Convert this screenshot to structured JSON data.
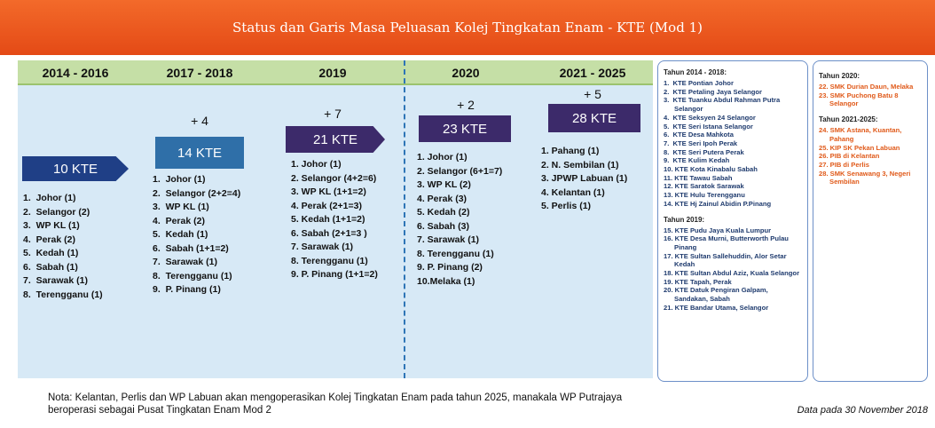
{
  "title": "Status dan Garis Masa Peluasan Kolej Tingkatan Enam - KTE (Mod 1)",
  "columns": [
    {
      "period": "2014 - 2016",
      "badge": "10 KTE",
      "items": [
        "1.  Johor (1)",
        "2.  Selangor (2)",
        "3.  WP KL (1)",
        "4.  Perak (2)",
        "5.  Kedah (1)",
        "6.  Sabah (1)",
        "7.  Sarawak (1)",
        "8.  Terengganu (1)"
      ]
    },
    {
      "period": "2017 - 2018",
      "increment": "+ 4",
      "badge": "14 KTE",
      "items": [
        "1.  Johor (1)",
        "2.  Selangor (2+2=4)",
        "3.  WP KL (1)",
        "4.  Perak (2)",
        "5.  Kedah (1)",
        "6.  Sabah (1+1=2)",
        "7.  Sarawak (1)",
        "8.  Terengganu (1)",
        "9.  P. Pinang (1)"
      ]
    },
    {
      "period": "2019",
      "increment": "+ 7",
      "badge": "21 KTE",
      "items": [
        "1. Johor (1)",
        "2. Selangor (4+2=6)",
        "3. WP KL (1+1=2)",
        "4. Perak (2+1=3)",
        "5. Kedah (1+1=2)",
        "6. Sabah (2+1=3 )",
        "7. Sarawak (1)",
        "8. Terengganu (1)",
        "9. P. Pinang (1+1=2)"
      ]
    },
    {
      "period": "2020",
      "increment": "+ 2",
      "badge": "23 KTE",
      "items": [
        "1. Johor (1)",
        "2. Selangor (6+1=7)",
        "3. WP KL (2)",
        "4. Perak (3)",
        "5. Kedah (2)",
        "6. Sabah (3)",
        "7. Sarawak (1)",
        "8. Terengganu (1)",
        "9. P. Pinang (2)",
        "10.Melaka (1)"
      ]
    },
    {
      "period": "2021 - 2025",
      "increment": "+ 5",
      "badge": "28 KTE",
      "items": [
        "1. Pahang (1)",
        "2. N. Sembilan (1)",
        "3. JPWP Labuan (1)",
        "4. Kelantan (1)",
        "5. Perlis (1)"
      ]
    }
  ],
  "panels": [
    {
      "sections": [
        {
          "heading": "Tahun 2014 - 2018:",
          "items": [
            "1.  KTE Pontian Johor",
            "2.  KTE Petaling Jaya Selangor",
            "3.  KTE Tuanku Abdul Rahman Putra Selangor",
            "4.  KTE Seksyen 24 Selangor",
            "5.  KTE Seri Istana Selangor",
            "6.  KTE Desa Mahkota",
            "7.  KTE Seri Ipoh Perak",
            "8.  KTE Seri Putera Perak",
            "9.  KTE Kulim Kedah",
            "10. KTE Kota Kinabalu Sabah",
            "11. KTE Tawau Sabah",
            "12. KTE Saratok Sarawak",
            "13. KTE Hulu Terengganu",
            "14. KTE Hj Zainul Abidin P.Pinang"
          ]
        },
        {
          "heading": "Tahun 2019:",
          "items": [
            "15. KTE Pudu Jaya Kuala Lumpur",
            "16. KTE Desa Murni, Butterworth Pulau Pinang",
            "17. KTE Sultan Sallehuddin, Alor Setar Kedah",
            "18. KTE Sultan Abdul Aziz, Kuala Selangor",
            "19. KTE Tapah, Perak",
            "20. KTE Datuk Pengiran Galpam, Sandakan, Sabah",
            "21. KTE Bandar Utama, Selangor"
          ]
        }
      ]
    },
    {
      "sections": [
        {
          "heading": "Tahun 2020:",
          "items": [
            "22. SMK Durian Daun, Melaka",
            "23. SMK Puchong Batu 8 Selangor"
          ]
        },
        {
          "heading": "Tahun 2021-2025:",
          "items": [
            "24. SMK Astana, Kuantan, Pahang",
            "25. KIP SK Pekan Labuan",
            "26. PIB di Kelantan",
            "27. PIB di Perlis",
            "28. SMK Senawang 3, Negeri Sembilan"
          ]
        }
      ]
    }
  ],
  "note": "Nota: Kelantan, Perlis dan WP Labuan akan mengoperasikan Kolej Tingkatan Enam pada tahun 2025, manakala WP Putrajaya beroperasi sebagai Pusat Tingkatan Enam Mod 2",
  "date": "Data pada 30 November 2018"
}
